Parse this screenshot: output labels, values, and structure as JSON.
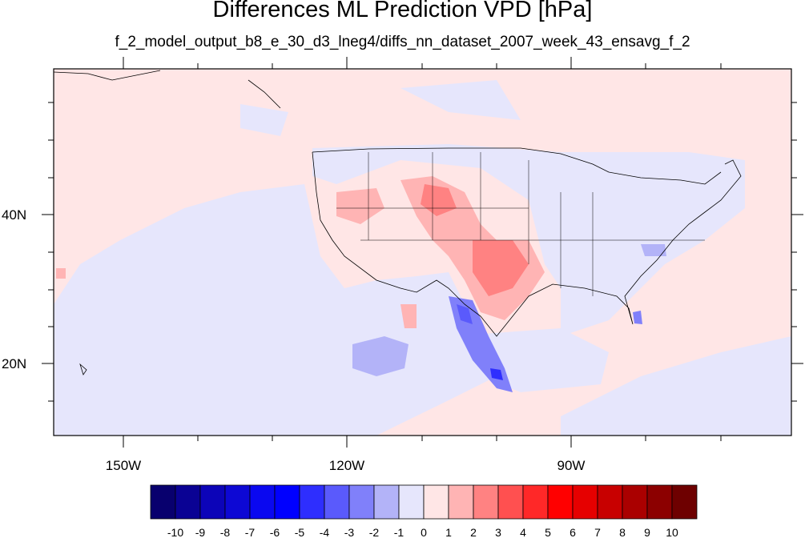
{
  "title": "Differences ML Prediction VPD [hPa]",
  "subtitle": "f_2_model_output_b8_e_30_d3_lneg4/diffs_nn_dataset_2007_week_43_ensavg_f_2",
  "map": {
    "lat_labels": [
      "40N",
      "20N"
    ],
    "lon_labels": [
      "150W",
      "120W",
      "90W"
    ]
  },
  "colorbar": {
    "labels": [
      "-10",
      "-9",
      "-8",
      "-7",
      "-6",
      "-5",
      "-4",
      "-3",
      "-2",
      "-1",
      "0",
      "1",
      "2",
      "3",
      "4",
      "5",
      "6",
      "7",
      "8",
      "9",
      "10"
    ],
    "colors": [
      "#08006e",
      "#0a0294",
      "#0c04b8",
      "#0d08d4",
      "#0a08f0",
      "#0000ff",
      "#2e2efe",
      "#5a5afc",
      "#8080fa",
      "#b3b3f8",
      "#e6e6fc",
      "#ffe6e6",
      "#ffb4b4",
      "#ff8282",
      "#ff5050",
      "#ff2828",
      "#ff0000",
      "#e60000",
      "#c80000",
      "#aa0000",
      "#8c0000",
      "#6e0000"
    ]
  }
}
